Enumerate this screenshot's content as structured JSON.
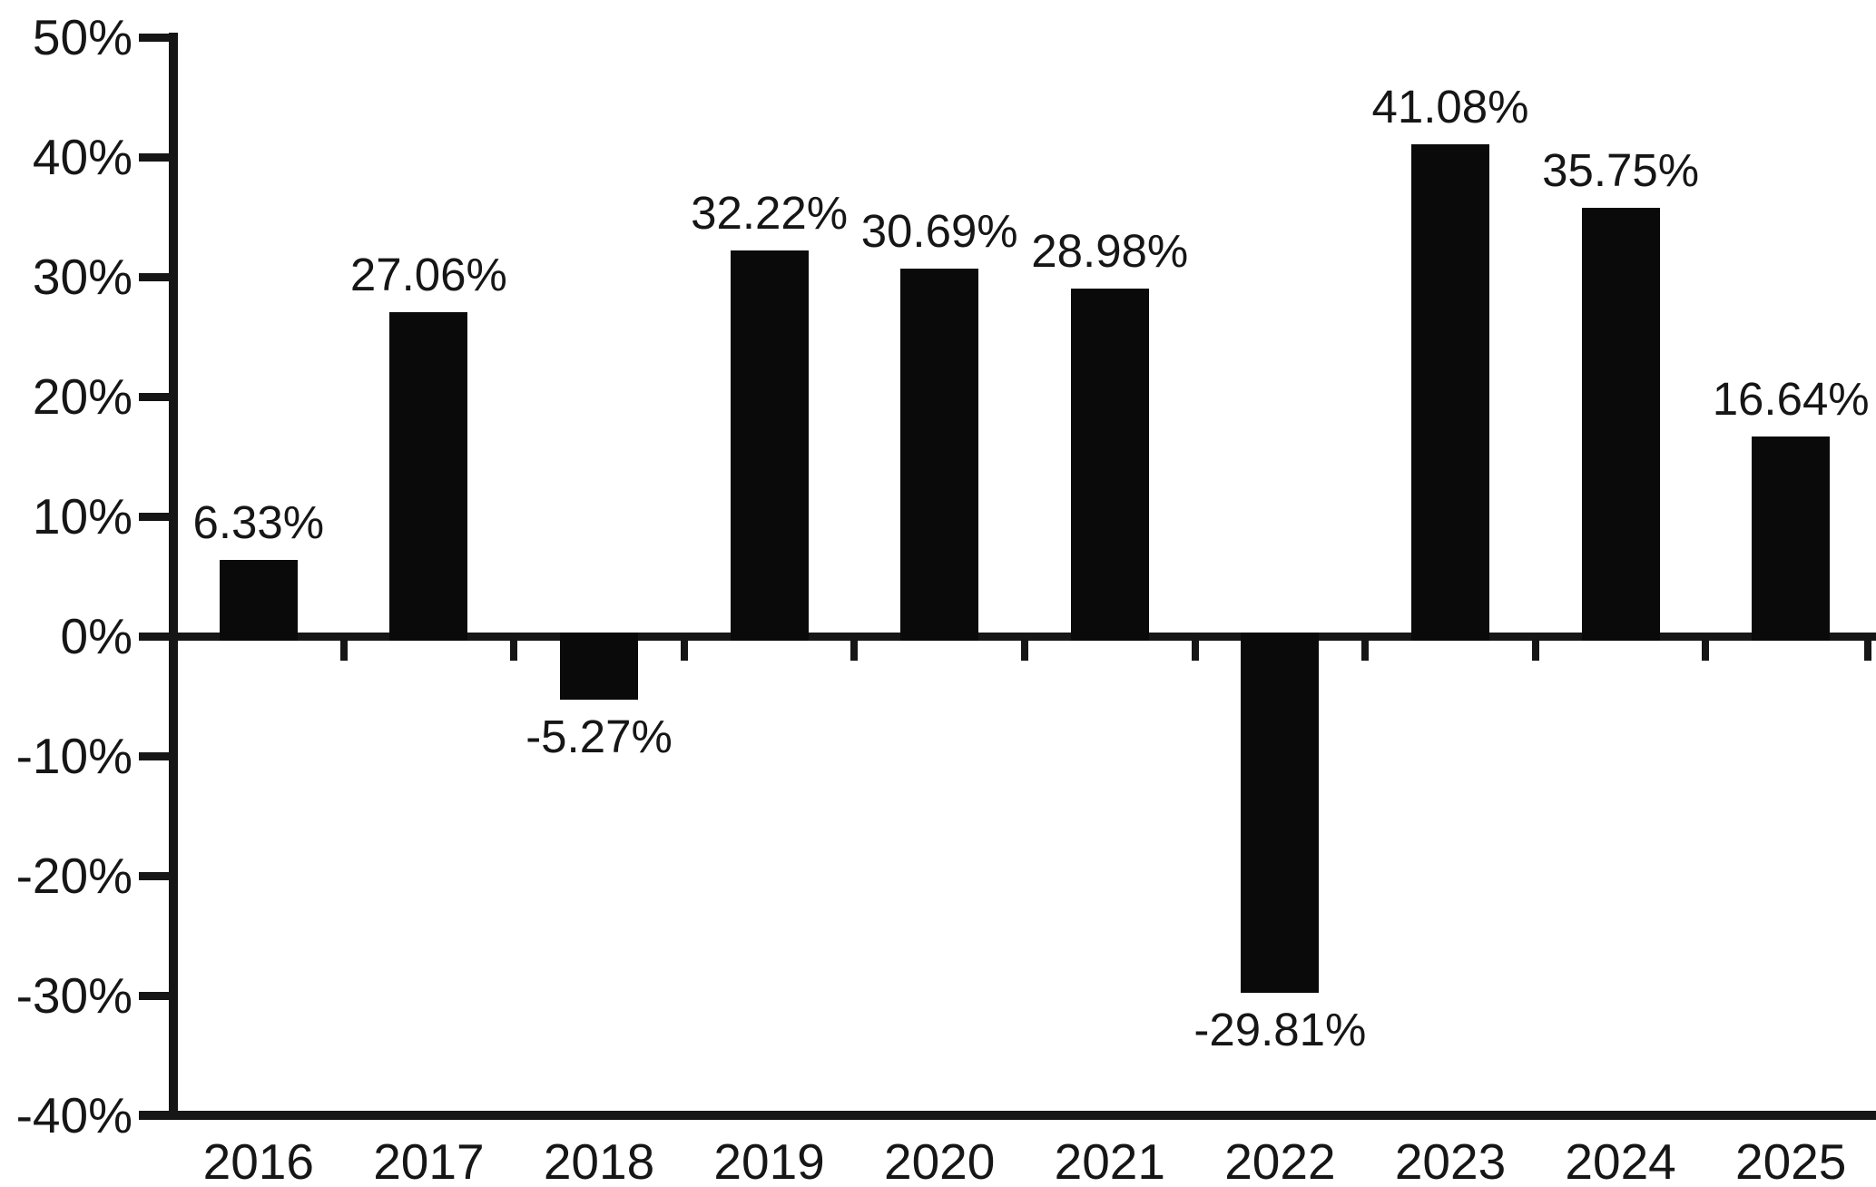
{
  "chart_data": {
    "type": "bar",
    "title": "",
    "xlabel": "",
    "ylabel": "",
    "categories": [
      "2016",
      "2017",
      "2018",
      "2019",
      "2020",
      "2021",
      "2022",
      "2023",
      "2024",
      "2025"
    ],
    "values": [
      6.33,
      27.06,
      -5.27,
      32.22,
      30.69,
      28.98,
      -29.81,
      41.08,
      35.75,
      16.64
    ],
    "value_labels": [
      "6.33%",
      "27.06%",
      "-5.27%",
      "32.22%",
      "30.69%",
      "28.98%",
      "-29.81%",
      "41.08%",
      "35.75%",
      "16.64%"
    ],
    "y_ticks": [
      50,
      40,
      30,
      20,
      10,
      0,
      -10,
      -20,
      -30,
      -40
    ],
    "y_tick_labels": [
      "50%",
      "40%",
      "30%",
      "20%",
      "10%",
      "0%",
      "-10%",
      "-20%",
      "-30%",
      "-40%"
    ],
    "ylim": [
      -40,
      50
    ],
    "grid": false,
    "legend": false,
    "bar_color": "#0a0a0a",
    "axis_color": "#161616",
    "text_color": "#161616",
    "background_color": "#ffffff"
  }
}
